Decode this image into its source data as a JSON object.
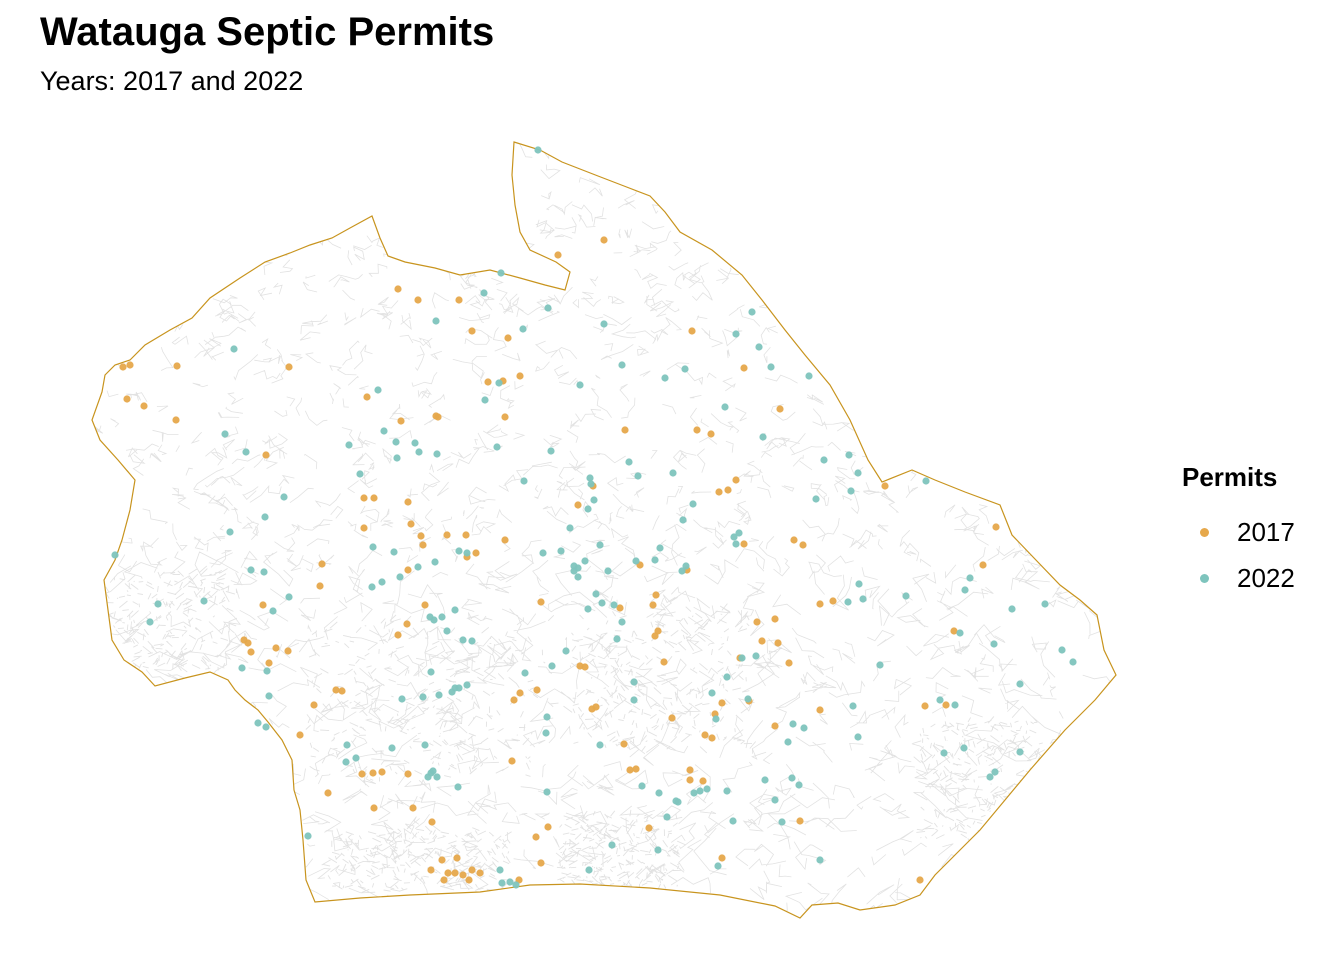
{
  "title": "Watauga Septic Permits",
  "subtitle": "Years: 2017 and 2022",
  "legend": {
    "title": "Permits",
    "items": [
      {
        "label": "2017",
        "color": "#E6A84B"
      },
      {
        "label": "2022",
        "color": "#7EC4BD"
      }
    ]
  },
  "colors": {
    "boundary": "#C8941E",
    "parcel_lines": "#E2E2E2",
    "background": "#FFFFFF"
  }
}
